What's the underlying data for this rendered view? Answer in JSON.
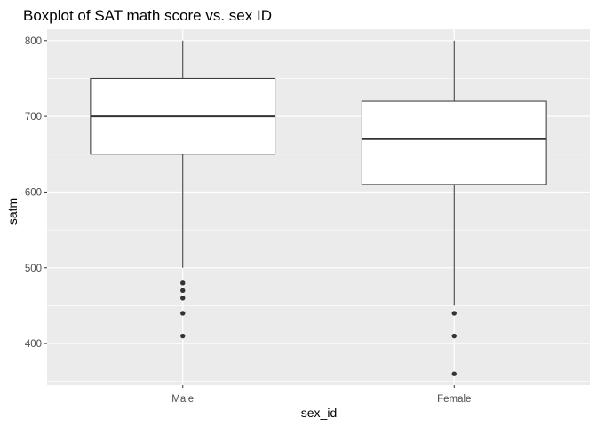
{
  "chart_data": {
    "type": "boxplot",
    "title": "Boxplot of SAT math score vs. sex ID",
    "xlabel": "sex_id",
    "ylabel": "satm",
    "categories": [
      "Male",
      "Female"
    ],
    "ylim": [
      345,
      815
    ],
    "y_ticks": [
      400,
      500,
      600,
      700,
      800
    ],
    "boxes": [
      {
        "category": "Male",
        "whisker_low": 500,
        "q1": 650,
        "median": 700,
        "q3": 750,
        "whisker_high": 800,
        "outliers": [
          480,
          470,
          460,
          440,
          410
        ]
      },
      {
        "category": "Female",
        "whisker_low": 450,
        "q1": 610,
        "median": 670,
        "q3": 720,
        "whisker_high": 800,
        "outliers": [
          440,
          410,
          360
        ]
      }
    ],
    "grid": true,
    "legend": "none",
    "colors": {
      "panel": "#ebebeb",
      "grid_major": "#ffffff",
      "box_fill": "#ffffff",
      "box_line": "#333333",
      "point": "#333333"
    }
  }
}
